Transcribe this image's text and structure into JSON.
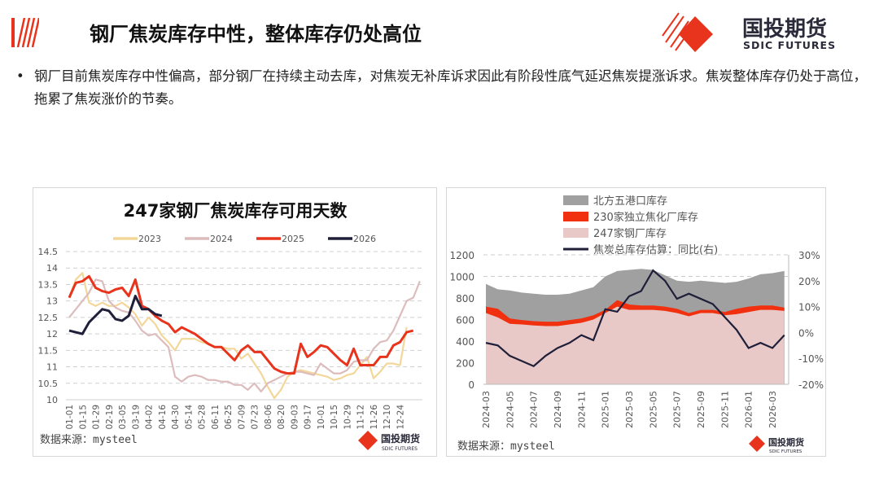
{
  "header": {
    "title": "钢厂焦炭库存中性，整体库存仍处高位",
    "logo_cn": "国投期货",
    "logo_en": "SDIC FUTURES"
  },
  "bullet": {
    "text": "钢厂目前焦炭库存中性偏高，部分钢厂在持续主动去库，对焦炭无补库诉求因此有阶段性底气延迟焦炭提涨诉求。焦炭整体库存仍处于高位，拖累了焦炭涨价的节奏。"
  },
  "colors": {
    "accent": "#e8341c",
    "c2023": "#f3d79a",
    "c2024": "#dcbcbc",
    "c2025": "#e8341c",
    "c2026": "#1f1f3a",
    "port": "#a0a0a0",
    "coking": "#f0300f",
    "steel": "#e8c9c7"
  },
  "chart_data": [
    {
      "type": "line",
      "title": "247家钢厂焦炭库存可用天数",
      "xlabel": "",
      "ylabel": "",
      "ylim": [
        10,
        14.5
      ],
      "yticks": [
        "10",
        "10.5",
        "11",
        "11.5",
        "12",
        "12.5",
        "13",
        "13.5",
        "14",
        "14.5"
      ],
      "x_tick_labels": [
        "01-01",
        "01-15",
        "01-29",
        "02-19",
        "03-05",
        "03-19",
        "04-02",
        "04-16",
        "04-30",
        "05-14",
        "05-28",
        "06-11",
        "06-25",
        "07-09",
        "07-23",
        "08-06",
        "08-20",
        "09-03",
        "09-17",
        "10-01",
        "10-15",
        "10-29",
        "11-12",
        "11-26",
        "12-10",
        "12-24"
      ],
      "legend_position": "top",
      "grid": true,
      "source": "数据来源：mysteel",
      "series": [
        {
          "name": "2023",
          "values": [
            13.1,
            13.65,
            13.85,
            12.95,
            12.85,
            12.95,
            12.85,
            12.85,
            12.95,
            12.8,
            12.6,
            12.25,
            12.5,
            12.3,
            11.95,
            11.75,
            11.5,
            11.85,
            11.85,
            11.85,
            11.75,
            11.7,
            11.6,
            11.6,
            11.55,
            11.55,
            11.25,
            11.4,
            11.1,
            10.8,
            10.4,
            10.05,
            10.3,
            10.7,
            10.85,
            10.9,
            10.85,
            10.8,
            10.75,
            10.7,
            10.6,
            10.65,
            10.75,
            10.8,
            11.05,
            11.3,
            10.65,
            10.85,
            11.1,
            11.1,
            11.05,
            12.2
          ]
        },
        {
          "name": "2024",
          "values": [
            12.5,
            12.75,
            13.0,
            13.25,
            13.65,
            13.6,
            13.0,
            12.8,
            12.7,
            12.65,
            12.4,
            12.1,
            11.95,
            12.0,
            11.8,
            11.6,
            10.7,
            10.55,
            10.7,
            10.75,
            10.7,
            10.6,
            10.6,
            10.55,
            10.55,
            10.45,
            10.45,
            10.3,
            10.5,
            10.25,
            10.5,
            10.6,
            10.7,
            10.8,
            10.85,
            10.85,
            10.8,
            10.75,
            11.1,
            10.95,
            10.8,
            10.8,
            10.9,
            11.15,
            11.2,
            11.2,
            11.55,
            11.75,
            11.8,
            12.1,
            12.55,
            13.0,
            13.1,
            13.6
          ]
        },
        {
          "name": "2025",
          "values": [
            13.1,
            13.55,
            13.6,
            13.75,
            13.4,
            13.3,
            13.25,
            13.35,
            13.4,
            13.15,
            13.65,
            12.85,
            12.75,
            12.55,
            12.4,
            12.3,
            12.05,
            12.2,
            12.1,
            12.0,
            11.85,
            11.7,
            11.6,
            11.6,
            11.4,
            11.2,
            11.5,
            11.65,
            11.45,
            11.45,
            11.2,
            10.95,
            10.85,
            10.8,
            10.8,
            11.7,
            11.3,
            11.45,
            11.65,
            11.6,
            11.4,
            11.2,
            11.05,
            11.55,
            11.05,
            11.05,
            11.05,
            11.3,
            11.3,
            11.65,
            11.75,
            12.05,
            12.1
          ]
        },
        {
          "name": "2026",
          "values": [
            12.1,
            12.05,
            12.0,
            12.35,
            12.55,
            12.75,
            12.7,
            12.45,
            12.4,
            12.55,
            13.15,
            12.75,
            12.75,
            12.6,
            12.55
          ]
        }
      ]
    },
    {
      "type": "area",
      "title": "",
      "ylim": [
        0,
        1200
      ],
      "y2lim": [
        -20,
        30
      ],
      "yticks": [
        "0",
        "200",
        "400",
        "600",
        "800",
        "1000",
        "1200"
      ],
      "y2ticks": [
        "-20%",
        "-10%",
        "0%",
        "10%",
        "20%",
        "30%"
      ],
      "x": [
        "2024-03",
        "2024-04",
        "2024-05",
        "2024-06",
        "2024-07",
        "2024-08",
        "2024-09",
        "2024-10",
        "2024-11",
        "2024-12",
        "2025-01",
        "2025-02",
        "2025-03",
        "2025-04",
        "2025-05",
        "2025-06",
        "2025-07",
        "2025-08",
        "2025-09",
        "2025-10",
        "2025-11",
        "2025-12",
        "2026-01",
        "2026-02",
        "2026-03",
        "2026-04"
      ],
      "x_tick_labels": [
        "2024-03",
        "2024-05",
        "2024-07",
        "2024-09",
        "2024-11",
        "2025-01",
        "2025-03",
        "2025-05",
        "2025-07",
        "2025-09",
        "2025-11",
        "2026-01",
        "2026-03"
      ],
      "legend_position": "top",
      "source": "数据来源：mysteel",
      "series": [
        {
          "name": "247家钢厂库存",
          "kind": "area",
          "values": [
            660,
            620,
            560,
            555,
            545,
            540,
            540,
            555,
            570,
            600,
            660,
            720,
            690,
            690,
            690,
            680,
            660,
            630,
            660,
            660,
            640,
            650,
            670,
            690,
            690,
            680
          ]
        },
        {
          "name": "230家独立焦化厂库存",
          "kind": "area",
          "values": [
            60,
            80,
            50,
            40,
            40,
            40,
            40,
            40,
            40,
            40,
            30,
            60,
            50,
            40,
            40,
            40,
            40,
            30,
            30,
            30,
            30,
            50,
            50,
            40,
            40,
            30
          ]
        },
        {
          "name": "北方五港口库存",
          "kind": "area",
          "values": [
            210,
            180,
            260,
            255,
            255,
            250,
            250,
            245,
            260,
            260,
            310,
            270,
            320,
            340,
            330,
            290,
            260,
            290,
            270,
            260,
            270,
            250,
            260,
            290,
            300,
            340
          ]
        },
        {
          "name": "焦炭总库存估算：同比(右)",
          "kind": "line",
          "axis": "right",
          "values": [
            -4,
            -5,
            -9,
            -11,
            -13,
            -9,
            -6,
            -4,
            -1,
            -3,
            9,
            8,
            14,
            16,
            24,
            20,
            13,
            15,
            13,
            11,
            6,
            1,
            -6,
            -4,
            -6,
            -1
          ]
        }
      ]
    }
  ]
}
